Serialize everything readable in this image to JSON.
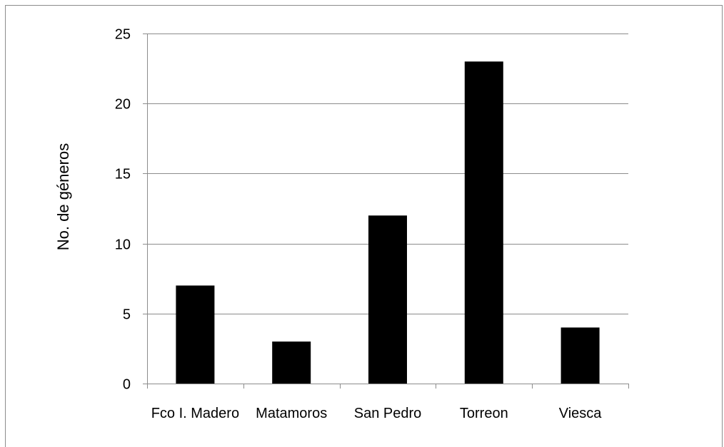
{
  "chart_data": {
    "type": "bar",
    "categories": [
      "Fco I. Madero",
      "Matamoros",
      "San Pedro",
      "Torreon",
      "Viesca"
    ],
    "values": [
      7,
      3,
      12,
      23,
      4
    ],
    "title": "",
    "xlabel": "",
    "ylabel": "No. de géneros",
    "ylim": [
      0,
      25
    ],
    "yticks": [
      0,
      5,
      10,
      15,
      20,
      25
    ],
    "grid": true,
    "legend": "none",
    "bar_color": "#000000",
    "grid_color": "#8c8c8c"
  }
}
